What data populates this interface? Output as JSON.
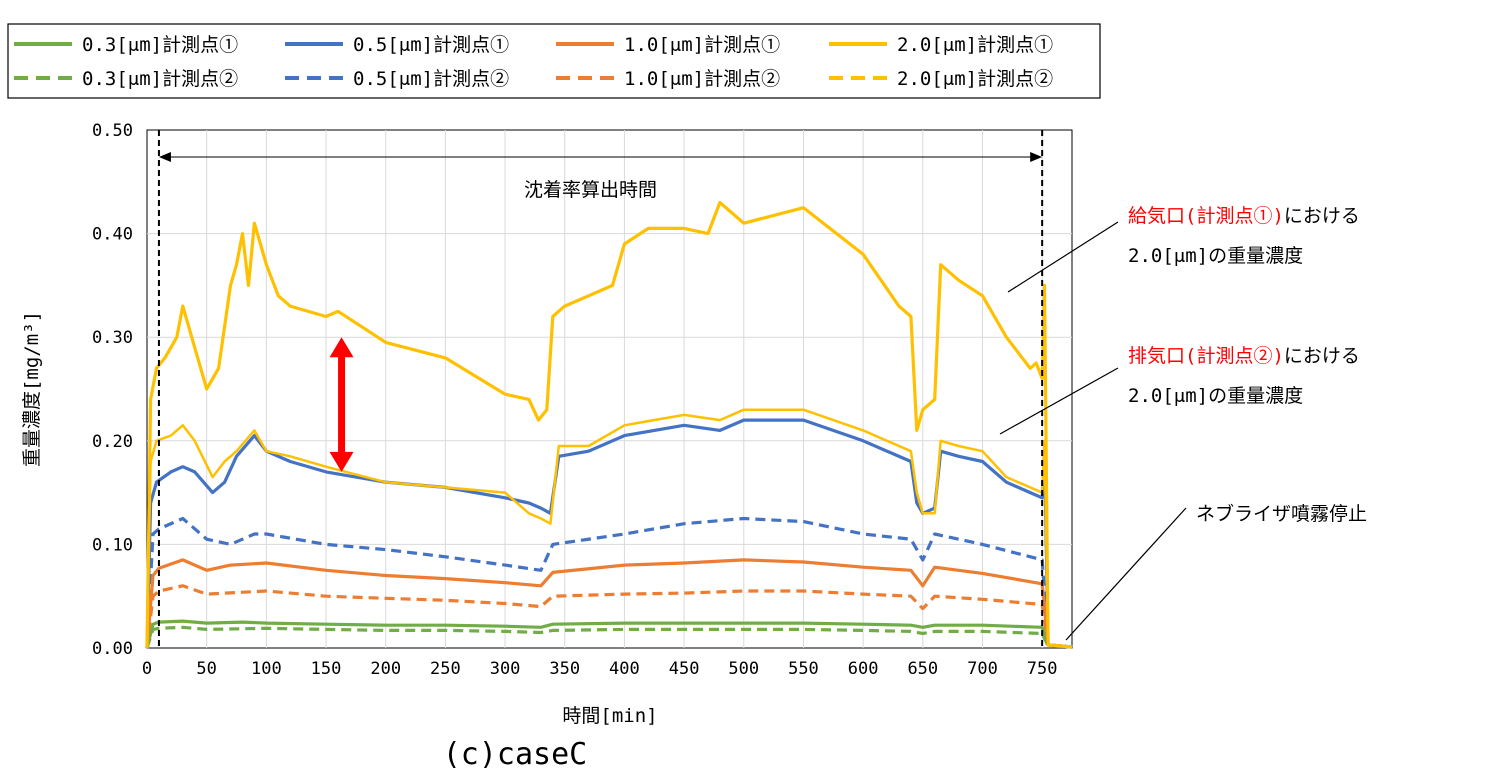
{
  "chart_data": {
    "type": "line",
    "caption": "(c)caseC",
    "xlabel": "時間[min]",
    "ylabel": "重量濃度[mg/m³]",
    "xlim": [
      0,
      775
    ],
    "ylim": [
      0,
      0.5
    ],
    "xticks": [
      0,
      50,
      100,
      150,
      200,
      250,
      300,
      350,
      400,
      450,
      500,
      550,
      600,
      650,
      700,
      750
    ],
    "yticks": [
      0,
      0.1,
      0.2,
      0.3,
      0.4,
      0.5
    ],
    "ytick_labels": [
      "0.00",
      "0.10",
      "0.20",
      "0.30",
      "0.40",
      "0.50"
    ],
    "grid": true,
    "legend_position": "top",
    "series": [
      {
        "name": "0.3[μm]計測点①",
        "color": "#70AD47",
        "dash": false,
        "x": [
          0,
          5,
          10,
          30,
          50,
          80,
          100,
          150,
          200,
          250,
          300,
          330,
          340,
          400,
          450,
          500,
          550,
          600,
          640,
          650,
          660,
          700,
          750,
          755,
          775
        ],
        "y": [
          0.0,
          0.023,
          0.025,
          0.026,
          0.024,
          0.025,
          0.024,
          0.023,
          0.022,
          0.022,
          0.021,
          0.02,
          0.023,
          0.024,
          0.024,
          0.024,
          0.024,
          0.023,
          0.022,
          0.02,
          0.022,
          0.022,
          0.02,
          0.003,
          0.001
        ]
      },
      {
        "name": "0.5[μm]計測点①",
        "color": "#4472C4",
        "dash": false,
        "x": [
          0,
          3,
          8,
          20,
          30,
          40,
          55,
          65,
          75,
          90,
          100,
          120,
          150,
          200,
          250,
          300,
          320,
          330,
          338,
          345,
          370,
          400,
          450,
          480,
          500,
          550,
          600,
          640,
          645,
          650,
          660,
          665,
          680,
          700,
          720,
          740,
          750,
          752,
          755,
          775
        ],
        "y": [
          0.0,
          0.14,
          0.16,
          0.17,
          0.175,
          0.17,
          0.15,
          0.16,
          0.185,
          0.205,
          0.19,
          0.18,
          0.17,
          0.16,
          0.155,
          0.145,
          0.14,
          0.135,
          0.13,
          0.185,
          0.19,
          0.205,
          0.215,
          0.21,
          0.22,
          0.22,
          0.2,
          0.18,
          0.14,
          0.13,
          0.135,
          0.19,
          0.185,
          0.18,
          0.16,
          0.15,
          0.145,
          0.19,
          0.003,
          0.001
        ]
      },
      {
        "name": "1.0[μm]計測点①",
        "color": "#ED7D31",
        "dash": false,
        "x": [
          0,
          5,
          10,
          30,
          50,
          70,
          100,
          150,
          200,
          250,
          300,
          330,
          340,
          400,
          450,
          500,
          550,
          600,
          640,
          650,
          660,
          700,
          750,
          755,
          775
        ],
        "y": [
          0.0,
          0.07,
          0.077,
          0.085,
          0.075,
          0.08,
          0.082,
          0.075,
          0.07,
          0.067,
          0.063,
          0.06,
          0.073,
          0.08,
          0.082,
          0.085,
          0.083,
          0.078,
          0.075,
          0.06,
          0.078,
          0.072,
          0.062,
          0.003,
          0.001
        ]
      },
      {
        "name": "2.0[μm]計測点①",
        "color": "#FFC000",
        "dash": false,
        "x": [
          0,
          3,
          8,
          15,
          25,
          30,
          40,
          50,
          60,
          70,
          75,
          80,
          85,
          90,
          95,
          100,
          110,
          120,
          150,
          160,
          180,
          200,
          250,
          300,
          320,
          328,
          335,
          340,
          350,
          370,
          390,
          400,
          420,
          450,
          470,
          480,
          500,
          550,
          600,
          630,
          640,
          645,
          650,
          660,
          665,
          680,
          700,
          720,
          740,
          745,
          750,
          752,
          755,
          775
        ],
        "y": [
          0.0,
          0.24,
          0.27,
          0.28,
          0.3,
          0.33,
          0.29,
          0.25,
          0.27,
          0.35,
          0.37,
          0.4,
          0.35,
          0.41,
          0.39,
          0.37,
          0.34,
          0.33,
          0.32,
          0.325,
          0.31,
          0.295,
          0.28,
          0.245,
          0.24,
          0.22,
          0.23,
          0.32,
          0.33,
          0.34,
          0.35,
          0.39,
          0.405,
          0.405,
          0.4,
          0.43,
          0.41,
          0.425,
          0.38,
          0.33,
          0.32,
          0.21,
          0.23,
          0.24,
          0.37,
          0.355,
          0.34,
          0.3,
          0.27,
          0.275,
          0.26,
          0.35,
          0.003,
          0.001
        ]
      },
      {
        "name": "0.3[μm]計測点②",
        "color": "#70AD47",
        "dash": true,
        "x": [
          0,
          5,
          10,
          30,
          50,
          100,
          150,
          200,
          250,
          300,
          330,
          340,
          400,
          450,
          500,
          550,
          600,
          640,
          650,
          660,
          700,
          750,
          755,
          775
        ],
        "y": [
          0.0,
          0.018,
          0.019,
          0.02,
          0.018,
          0.019,
          0.018,
          0.017,
          0.017,
          0.016,
          0.015,
          0.017,
          0.018,
          0.018,
          0.018,
          0.018,
          0.017,
          0.016,
          0.014,
          0.016,
          0.016,
          0.014,
          0.002,
          0.001
        ]
      },
      {
        "name": "0.5[μm]計測点②",
        "color": "#4472C4",
        "dash": true,
        "x": [
          0,
          5,
          10,
          30,
          50,
          70,
          90,
          100,
          150,
          200,
          250,
          300,
          330,
          340,
          400,
          450,
          500,
          550,
          600,
          640,
          650,
          660,
          700,
          750,
          755,
          775
        ],
        "y": [
          0.0,
          0.11,
          0.115,
          0.125,
          0.105,
          0.1,
          0.11,
          0.11,
          0.1,
          0.095,
          0.088,
          0.08,
          0.075,
          0.1,
          0.11,
          0.12,
          0.125,
          0.122,
          0.11,
          0.105,
          0.085,
          0.11,
          0.1,
          0.085,
          0.003,
          0.001
        ]
      },
      {
        "name": "1.0[μm]計測点②",
        "color": "#ED7D31",
        "dash": true,
        "x": [
          0,
          5,
          10,
          30,
          50,
          100,
          150,
          200,
          250,
          300,
          330,
          340,
          400,
          450,
          500,
          550,
          600,
          640,
          650,
          660,
          700,
          750,
          755,
          775
        ],
        "y": [
          0.0,
          0.05,
          0.055,
          0.06,
          0.052,
          0.055,
          0.05,
          0.048,
          0.046,
          0.043,
          0.04,
          0.05,
          0.052,
          0.053,
          0.055,
          0.055,
          0.052,
          0.05,
          0.038,
          0.05,
          0.047,
          0.042,
          0.003,
          0.001
        ]
      },
      {
        "name": "2.0[μm]計測点②",
        "color": "#FFC000",
        "dash": false,
        "light": true,
        "x": [
          0,
          3,
          8,
          20,
          30,
          40,
          55,
          65,
          75,
          90,
          100,
          120,
          150,
          200,
          250,
          300,
          320,
          330,
          338,
          345,
          370,
          400,
          450,
          480,
          500,
          550,
          600,
          640,
          645,
          650,
          660,
          665,
          680,
          700,
          720,
          740,
          750,
          752,
          755,
          775
        ],
        "y": [
          0.0,
          0.18,
          0.2,
          0.205,
          0.215,
          0.2,
          0.165,
          0.18,
          0.19,
          0.21,
          0.19,
          0.185,
          0.175,
          0.16,
          0.155,
          0.15,
          0.13,
          0.125,
          0.12,
          0.195,
          0.195,
          0.215,
          0.225,
          0.22,
          0.23,
          0.23,
          0.21,
          0.19,
          0.15,
          0.13,
          0.13,
          0.2,
          0.195,
          0.19,
          0.165,
          0.155,
          0.15,
          0.2,
          0.003,
          0.001
        ]
      }
    ],
    "annotations": {
      "period_label": "沈着率算出時間",
      "period_range": [
        10,
        750
      ],
      "supply_label_red": "給気口(計測点①)",
      "supply_label_black": "における",
      "supply_label_line2": "2.0[μm]の重量濃度",
      "exhaust_label_red": "排気口(計測点②)",
      "exhaust_label_black": "における",
      "exhaust_label_line2": "2.0[μm]の重量濃度",
      "stop_label": "ネブライザ噴霧停止",
      "red_arrow_x": 163,
      "red_arrow_y": [
        0.17,
        0.3
      ]
    },
    "colors": {
      "accent_red": "#FF0000",
      "frame": "#000000",
      "grid": "#D9D9D9"
    }
  }
}
